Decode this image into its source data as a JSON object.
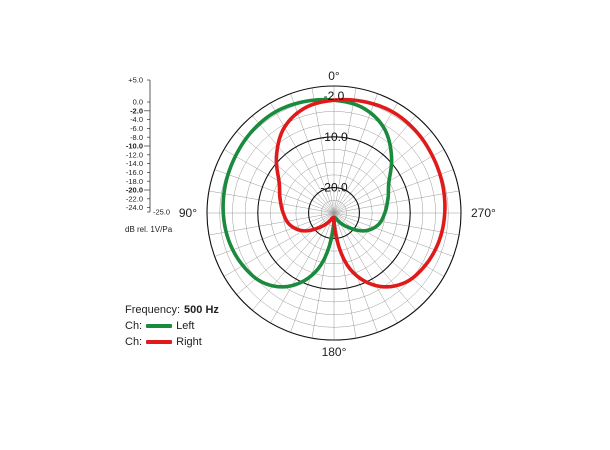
{
  "chart_data": {
    "type": "polar",
    "angle_labels": [
      "0°",
      "90°",
      "180°",
      "270°"
    ],
    "rings_db": [
      0,
      -2.5,
      -5,
      -7.5,
      -10,
      -12.5,
      -15,
      -17.5,
      -20,
      -22.5,
      -25
    ],
    "emphasized_rings_db": [
      -10,
      -20
    ],
    "ring_labels": [
      "-2.0",
      "-10.0",
      "-20.0"
    ],
    "scale": {
      "ticks": [
        "+5.0",
        "0.0",
        "-2.0",
        "-4.0",
        "-6.0",
        "-8.0",
        "-10.0",
        "-12.0",
        "-14.0",
        "-16.0",
        "-18.0",
        "-20.0",
        "-22.0",
        "-24.0",
        "-25.0"
      ],
      "tick_values": [
        5,
        0,
        -2,
        -4,
        -6,
        -8,
        -10,
        -12,
        -14,
        -16,
        -18,
        -20,
        -22,
        -24,
        -25
      ],
      "bold_ticks": [
        "-2.0",
        "-10.0",
        "-20.0"
      ],
      "unit": "dB rel. 1V/Pa"
    },
    "frequency_label": "Frequency:",
    "frequency_value": "500 Hz",
    "series": [
      {
        "name": "Left",
        "color": "#1a8a3c",
        "angles_deg": [
          0,
          15,
          30,
          45,
          60,
          75,
          90,
          105,
          120,
          135,
          150,
          165,
          180,
          195,
          210,
          225,
          240,
          255,
          270,
          285,
          300,
          315,
          330,
          345
        ],
        "level_db": [
          -2.8,
          -2.3,
          -2.0,
          -2.2,
          -2.6,
          -2.9,
          -3.2,
          -3.6,
          -4.3,
          -5.5,
          -8.5,
          -14,
          -23,
          -24,
          -23,
          -21,
          -18,
          -16,
          -15,
          -14,
          -12.5,
          -9,
          -5.5,
          -3.5
        ]
      },
      {
        "name": "Right",
        "color": "#e01a1a",
        "angles_deg": [
          0,
          15,
          30,
          45,
          60,
          75,
          90,
          105,
          120,
          135,
          150,
          165,
          180,
          195,
          210,
          225,
          240,
          255,
          270,
          285,
          300,
          315,
          330,
          345
        ],
        "level_db": [
          -2.8,
          -3.5,
          -5.5,
          -9,
          -12.5,
          -14,
          -15,
          -16,
          -18,
          -21,
          -23,
          -24,
          -23,
          -14,
          -8.5,
          -5.5,
          -4.3,
          -3.6,
          -3.2,
          -2.9,
          -2.6,
          -2.2,
          -2.0,
          -2.3
        ]
      }
    ]
  },
  "legend": {
    "ch_label": "Ch:"
  }
}
